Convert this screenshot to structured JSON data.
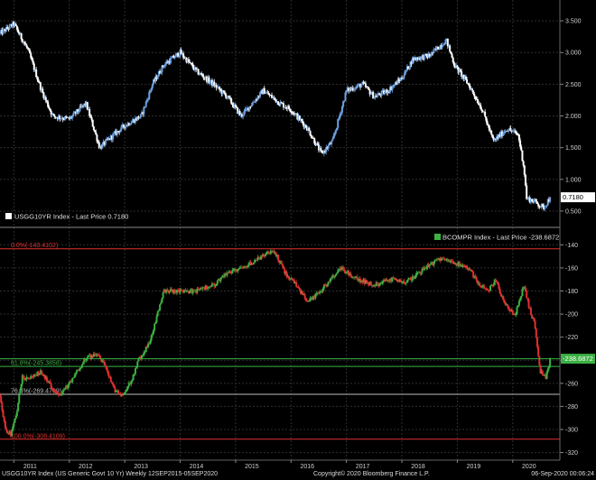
{
  "chart_data": [
    {
      "type": "candlestick",
      "legend": "USGG10YR Index - Last Price 0.7180",
      "legend_placement": "bottom-left",
      "last_price_label": "0.7180",
      "last_price": 0.718,
      "ylim": [
        0.3,
        3.8
      ],
      "yticks": [
        0.5,
        1.0,
        1.5,
        2.0,
        2.5,
        3.0,
        3.5
      ],
      "ytick_labels": [
        "0.500",
        "1.000",
        "1.500",
        "2.000",
        "2.500",
        "3.000",
        "3.500"
      ],
      "colors": {
        "up": "#6da0e0",
        "down": "#ffffff"
      },
      "x": [
        2010.75,
        2011.0,
        2011.25,
        2011.5,
        2011.7,
        2012.0,
        2012.3,
        2012.55,
        2012.8,
        2013.0,
        2013.3,
        2013.5,
        2013.7,
        2014.0,
        2014.3,
        2014.6,
        2014.85,
        2015.1,
        2015.3,
        2015.5,
        2015.8,
        2016.0,
        2016.3,
        2016.55,
        2016.75,
        2017.0,
        2017.3,
        2017.5,
        2017.75,
        2018.0,
        2018.2,
        2018.5,
        2018.8,
        2018.95,
        2019.2,
        2019.45,
        2019.65,
        2019.9,
        2020.1,
        2020.2,
        2020.25,
        2020.4,
        2020.55,
        2020.68
      ],
      "values": [
        3.3,
        3.45,
        3.05,
        2.4,
        2.0,
        1.95,
        2.2,
        1.5,
        1.7,
        1.85,
        2.0,
        2.5,
        2.8,
        3.0,
        2.7,
        2.5,
        2.3,
        2.0,
        2.2,
        2.4,
        2.2,
        2.1,
        1.8,
        1.4,
        1.6,
        2.4,
        2.5,
        2.3,
        2.4,
        2.6,
        2.9,
        2.95,
        3.2,
        2.8,
        2.5,
        2.1,
        1.6,
        1.8,
        1.7,
        1.2,
        0.7,
        0.65,
        0.55,
        0.72
      ]
    },
    {
      "type": "candlestick",
      "legend": "BCOMPR Index - Last Price -238.6872",
      "legend_placement": "top-right",
      "last_price_label": "-238.6872",
      "last_price": -238.6872,
      "ylim": [
        -325,
        -128
      ],
      "yticks": [
        -320,
        -300,
        -280,
        -260,
        -240,
        -220,
        -200,
        -180,
        -160,
        -140
      ],
      "ytick_labels": [
        "-320",
        "-300",
        "-280",
        "-260",
        "-240",
        "-220",
        "-200",
        "-180",
        "-160",
        "-140"
      ],
      "colors": {
        "up": "#3cb043",
        "down": "#e03030"
      },
      "fib_levels": [
        {
          "label": "0.0%(-143.4102)",
          "value": -143.4102,
          "color": "#e03030"
        },
        {
          "label": "61.8%(-245.3858)",
          "value": -245.3858,
          "color": "#3cb043"
        },
        {
          "label": "76.4%(-269.4709)",
          "value": -269.4709,
          "color": "#bbbbbb"
        },
        {
          "label": "100.0%(-308.4109)",
          "value": -308.4109,
          "color": "#e03030"
        }
      ],
      "x": [
        2010.75,
        2010.85,
        2010.95,
        2011.05,
        2011.15,
        2011.3,
        2011.5,
        2011.7,
        2011.85,
        2012.0,
        2012.3,
        2012.5,
        2012.65,
        2012.8,
        2012.95,
        2013.1,
        2013.25,
        2013.45,
        2013.7,
        2014.0,
        2014.3,
        2014.6,
        2014.85,
        2015.1,
        2015.3,
        2015.5,
        2015.7,
        2015.9,
        2016.1,
        2016.3,
        2016.5,
        2016.7,
        2016.9,
        2017.2,
        2017.5,
        2017.8,
        2018.1,
        2018.4,
        2018.7,
        2018.95,
        2019.2,
        2019.4,
        2019.55,
        2019.7,
        2019.8,
        2019.9,
        2020.05,
        2020.2,
        2020.3,
        2020.4,
        2020.5,
        2020.6,
        2020.68
      ],
      "values": [
        -270,
        -300,
        -305,
        -285,
        -255,
        -255,
        -250,
        -265,
        -270,
        -260,
        -238,
        -235,
        -245,
        -265,
        -270,
        -260,
        -240,
        -225,
        -180,
        -180,
        -180,
        -175,
        -165,
        -160,
        -155,
        -150,
        -145,
        -165,
        -175,
        -190,
        -182,
        -170,
        -160,
        -170,
        -175,
        -170,
        -172,
        -160,
        -152,
        -155,
        -160,
        -175,
        -180,
        -170,
        -185,
        -195,
        -200,
        -175,
        -195,
        -210,
        -250,
        -255,
        -238.6872
      ]
    }
  ],
  "x_axis": {
    "ticks": [
      2011,
      2012,
      2013,
      2014,
      2015,
      2016,
      2017,
      2018,
      2019,
      2020
    ],
    "tick_labels": [
      "2011",
      "2012",
      "2013",
      "2014",
      "2015",
      "2016",
      "2017",
      "2018",
      "2019",
      "2020"
    ],
    "xlim": [
      2010.75,
      2020.85
    ],
    "grid": true
  },
  "footer": {
    "left": "USGG10YR Index (US Generic Govt 10 Yr)  Weekly 12SEP2015-05SEP2020",
    "center": "Copyright© 2020 Bloomberg Finance L.P.",
    "right": "06-Sep-2020 00:06:24"
  }
}
